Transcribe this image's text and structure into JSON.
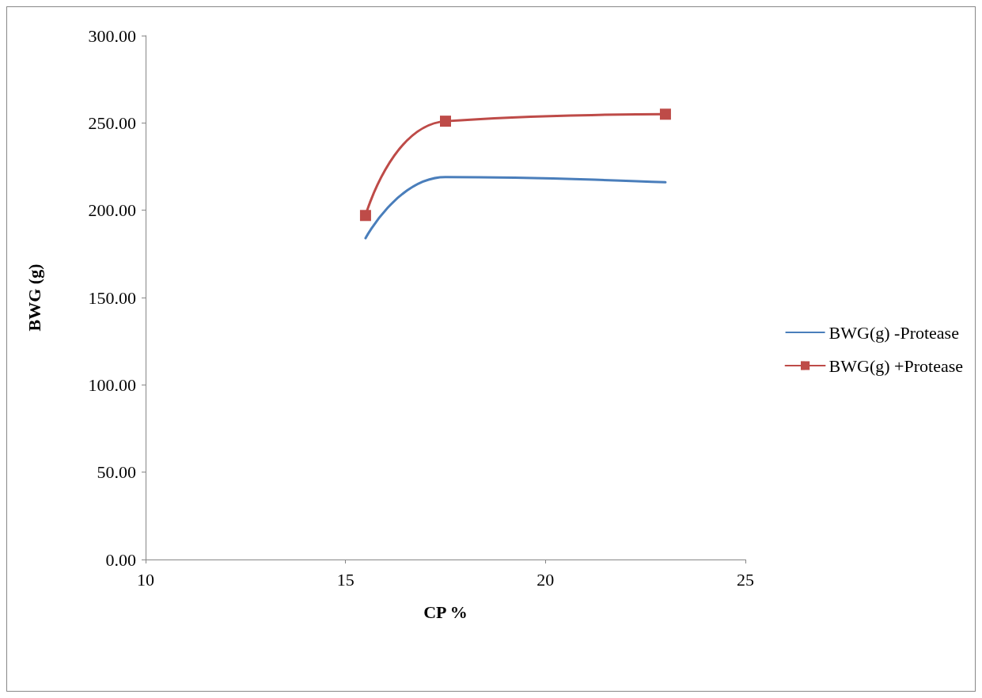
{
  "chart_data": {
    "type": "line",
    "xlabel": "CP %",
    "ylabel": "BWG (g)",
    "xlim": [
      10,
      25
    ],
    "xticks": [
      10,
      15,
      20,
      25
    ],
    "ylim": [
      0,
      300
    ],
    "yticks": [
      {
        "value": 0,
        "label": "0.00"
      },
      {
        "value": 50,
        "label": "50.00"
      },
      {
        "value": 100,
        "label": "100.00"
      },
      {
        "value": 150,
        "label": "150.00"
      },
      {
        "value": 200,
        "label": "200.00"
      },
      {
        "value": 250,
        "label": "250.00"
      },
      {
        "value": 300,
        "label": "300.00"
      }
    ],
    "grid": false,
    "legend": "right",
    "series": [
      {
        "name": "BWG(g) -Protease",
        "color": "#4a7ebb",
        "x": [
          15.5,
          17.5,
          23
        ],
        "values": [
          184,
          219,
          216
        ],
        "marker": "none"
      },
      {
        "name": "BWG(g) +Protease",
        "color": "#be4b48",
        "x": [
          15.5,
          17.5,
          23
        ],
        "values": [
          197,
          251,
          255
        ],
        "marker": "square"
      }
    ]
  }
}
